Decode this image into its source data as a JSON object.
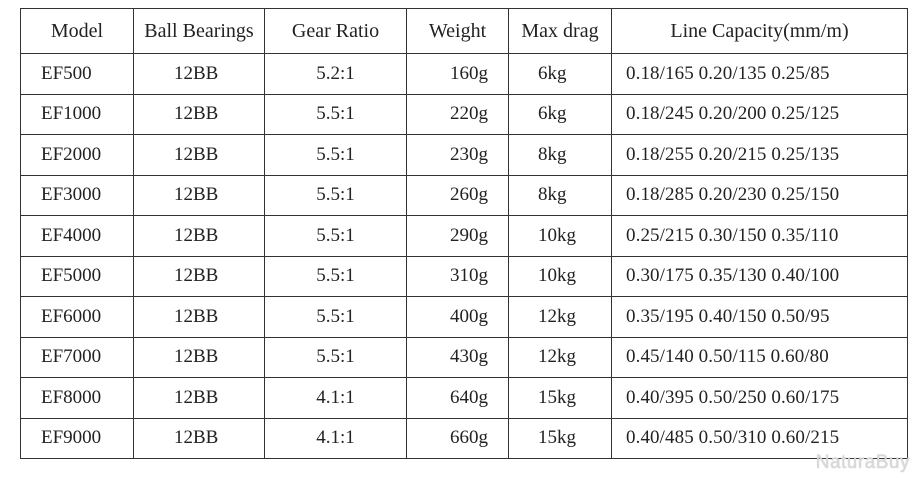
{
  "table": {
    "headers": [
      "Model",
      "Ball Bearings",
      "Gear Ratio",
      "Weight",
      "Max drag",
      "Line Capacity(mm/m)"
    ],
    "rows": [
      [
        "EF500",
        "12BB",
        "5.2:1",
        "160g",
        "6kg",
        "0.18/165 0.20/135 0.25/85"
      ],
      [
        "EF1000",
        "12BB",
        "5.5:1",
        "220g",
        "6kg",
        "0.18/245 0.20/200 0.25/125"
      ],
      [
        "EF2000",
        "12BB",
        "5.5:1",
        "230g",
        "8kg",
        "0.18/255 0.20/215 0.25/135"
      ],
      [
        "EF3000",
        "12BB",
        "5.5:1",
        "260g",
        "8kg",
        "0.18/285 0.20/230 0.25/150"
      ],
      [
        "EF4000",
        "12BB",
        "5.5:1",
        "290g",
        "10kg",
        "0.25/215 0.30/150 0.35/110"
      ],
      [
        "EF5000",
        "12BB",
        "5.5:1",
        "310g",
        "10kg",
        "0.30/175 0.35/130 0.40/100"
      ],
      [
        "EF6000",
        "12BB",
        "5.5:1",
        "400g",
        "12kg",
        "0.35/195 0.40/150 0.50/95"
      ],
      [
        "EF7000",
        "12BB",
        "5.5:1",
        "430g",
        "12kg",
        "0.45/140 0.50/115 0.60/80"
      ],
      [
        "EF8000",
        "12BB",
        "4.1:1",
        "640g",
        "15kg",
        "0.40/395 0.50/250 0.60/175"
      ],
      [
        "EF9000",
        "12BB",
        "4.1:1",
        "660g",
        "15kg",
        "0.40/485 0.50/310 0.60/215"
      ]
    ]
  },
  "watermark": "NaturaBuy"
}
